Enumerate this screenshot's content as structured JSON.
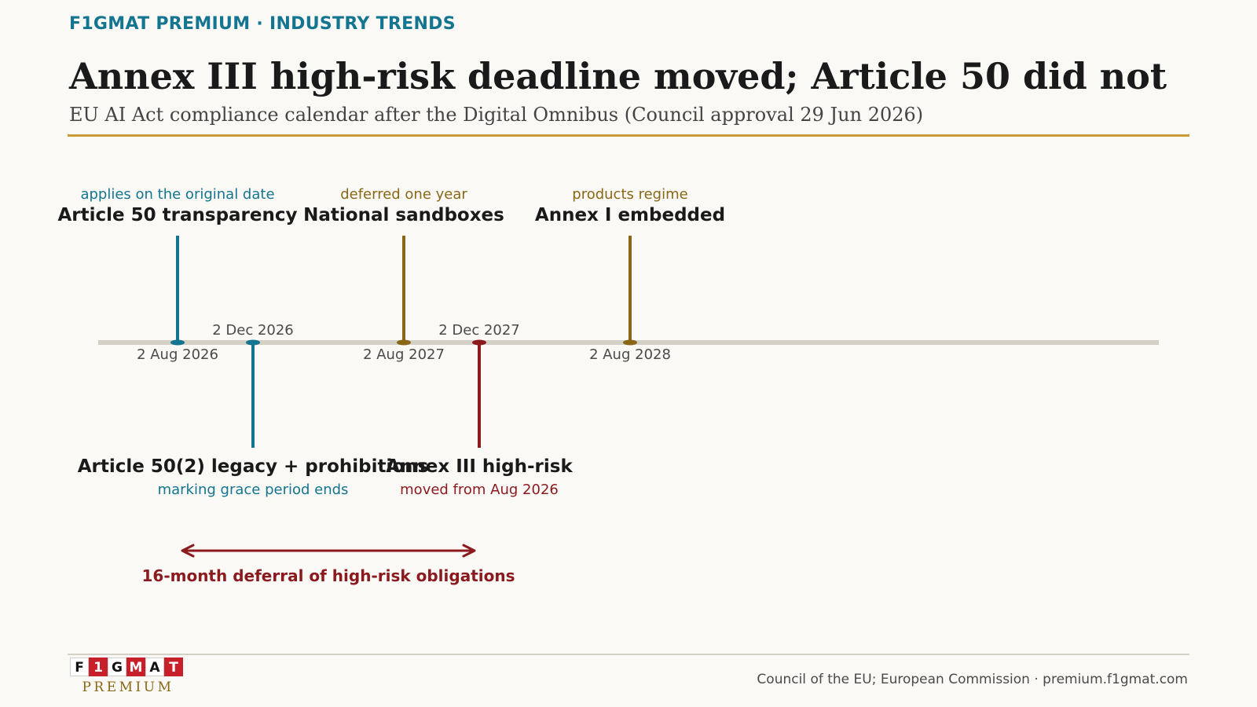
{
  "header": {
    "kicker": "F1GMAT PREMIUM · INDUSTRY TRENDS",
    "title": "Annex III high-risk deadline moved; Article 50 did not",
    "subtitle": "EU AI Act compliance calendar after the Digital Omnibus (Council approval 29 Jun 2026)"
  },
  "colors": {
    "teal": "#13758f",
    "olive": "#8a6716",
    "red": "#8b1a1f",
    "axis": "#d3d0c6",
    "gold_rule": "#c89b38"
  },
  "events": [
    {
      "date": "2 Aug 2026",
      "label": "Article 50 transparency",
      "sub": "applies on the original date",
      "side": "above",
      "color": "teal"
    },
    {
      "date": "2 Dec 2026",
      "label": "Article 50(2) legacy + prohibitions",
      "sub": "marking grace period ends",
      "side": "below",
      "color": "teal"
    },
    {
      "date": "2 Aug 2027",
      "label": "National sandboxes",
      "sub": "deferred one year",
      "side": "above",
      "color": "olive"
    },
    {
      "date": "2 Dec 2027",
      "label": "Annex III high-risk",
      "sub": "moved from Aug 2026",
      "side": "below",
      "color": "red"
    },
    {
      "date": "2 Aug 2028",
      "label": "Annex I embedded",
      "sub": "products regime",
      "side": "above",
      "color": "olive"
    }
  ],
  "span": {
    "from": "2 Aug 2026",
    "to": "2 Dec 2027",
    "label": "16-month deferral of high-risk obligations"
  },
  "footer": {
    "logo_letters": [
      "F",
      "1",
      "G",
      "M",
      "A",
      "T"
    ],
    "logo_word": "PREMIUM",
    "source": "Council of the EU; European Commission · premium.f1gmat.com"
  }
}
